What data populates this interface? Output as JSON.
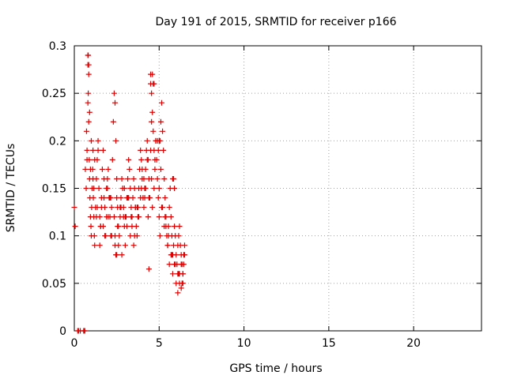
{
  "chart_data": {
    "type": "scatter",
    "title": "Day 191 of 2015, SRMTID for receiver p166",
    "xlabel": "GPS time / hours",
    "ylabel": "SRMTID / TECUs",
    "xlim": [
      0,
      24
    ],
    "ylim": [
      0,
      0.3
    ],
    "xticks": [
      0,
      5,
      10,
      15,
      20
    ],
    "yticks": [
      0,
      0.05,
      0.1,
      0.15,
      0.2,
      0.25,
      0.3
    ],
    "ytick_labels": [
      "0",
      "0.05",
      "0.1",
      "0.15",
      "0.2",
      "0.25",
      "0.3"
    ],
    "grid": true,
    "marker": "+",
    "color": "#dd0000",
    "series": [
      {
        "x": [
          0.0,
          0.05,
          0.2,
          0.25,
          0.35,
          0.55,
          0.6,
          0.62,
          0.65,
          0.7,
          0.72,
          0.75,
          0.8,
          0.82,
          0.85,
          0.88,
          0.9,
          0.92,
          0.95,
          0.98,
          1.0,
          1.02,
          1.05,
          1.08,
          1.1,
          1.12,
          1.15,
          1.18,
          1.2,
          1.25,
          1.3,
          1.35,
          1.4,
          1.45,
          1.5,
          1.55,
          1.6,
          1.65,
          1.7,
          1.75,
          1.8,
          1.85,
          1.9,
          1.95,
          2.0,
          2.05,
          2.1,
          2.15,
          2.2,
          2.25,
          2.3,
          2.35,
          2.4,
          2.45,
          2.5,
          2.55,
          2.6,
          2.65,
          2.7,
          2.75,
          2.8,
          2.85,
          2.9,
          2.95,
          3.0,
          3.05,
          3.1,
          3.15,
          3.2,
          3.25,
          3.3,
          3.35,
          3.4,
          3.45,
          3.5,
          3.55,
          3.6,
          3.65,
          3.7,
          3.75,
          3.8,
          3.85,
          3.9,
          3.95,
          4.0,
          4.05,
          4.1,
          4.15,
          4.2,
          4.25,
          4.3,
          4.35,
          4.4,
          4.45,
          4.5,
          4.55,
          4.6,
          4.65,
          4.7,
          4.75,
          4.8,
          4.85,
          4.9,
          4.95,
          5.0,
          5.05,
          5.1,
          5.15,
          5.2,
          5.25,
          5.3,
          5.35,
          5.4,
          5.45,
          5.5,
          5.55,
          5.6,
          5.65,
          5.7,
          5.75,
          5.8,
          5.85,
          5.9,
          5.95,
          6.0,
          6.05,
          6.1,
          6.15,
          6.2,
          6.25,
          6.3,
          6.35,
          6.4,
          6.45,
          6.5,
          0.8,
          0.85,
          1.0,
          1.1,
          1.3,
          1.5,
          1.7,
          1.9,
          2.1,
          2.4,
          2.6,
          2.8,
          3.0,
          3.2,
          3.4,
          3.6,
          3.8,
          4.0,
          4.2,
          4.4,
          4.6,
          4.8,
          5.0,
          5.2,
          5.4,
          5.6,
          5.8,
          6.0,
          6.2,
          6.4,
          0.9,
          1.2,
          1.4,
          1.6,
          1.8,
          2.0,
          2.2,
          2.5,
          2.7,
          2.9,
          3.1,
          3.3,
          3.5,
          3.7,
          3.9,
          4.1,
          4.3,
          4.5,
          4.7,
          4.9,
          5.1,
          5.3,
          5.5,
          5.7,
          5.9,
          6.1,
          6.3,
          6.5,
          0.75,
          0.95,
          1.15,
          1.35,
          1.55,
          1.75,
          1.95,
          2.15,
          2.35,
          2.55,
          2.75,
          2.95,
          3.15,
          3.35,
          3.55,
          3.75,
          3.95,
          4.15,
          4.35,
          4.55,
          4.75,
          4.95,
          5.15,
          5.35,
          5.55,
          5.75,
          5.95,
          6.15,
          6.35,
          4.5,
          4.6,
          4.65,
          4.7,
          4.55,
          5.05,
          5.0,
          2.4,
          2.45,
          2.5,
          0.8,
          0.82,
          0.85,
          4.4,
          6.1,
          6.2,
          6.3,
          6.4,
          6.45,
          5.8,
          5.85,
          5.9
        ],
        "y": [
          0.13,
          0.11,
          0.0,
          0.0,
          0.0,
          0.0,
          0.0,
          0.0,
          0.17,
          0.15,
          0.21,
          0.19,
          0.24,
          0.25,
          0.22,
          0.18,
          0.16,
          0.14,
          0.12,
          0.11,
          0.1,
          0.13,
          0.15,
          0.17,
          0.19,
          0.14,
          0.12,
          0.1,
          0.09,
          0.13,
          0.16,
          0.18,
          0.2,
          0.15,
          0.12,
          0.11,
          0.14,
          0.17,
          0.19,
          0.16,
          0.13,
          0.1,
          0.12,
          0.15,
          0.17,
          0.14,
          0.12,
          0.1,
          0.13,
          0.18,
          0.22,
          0.25,
          0.24,
          0.2,
          0.16,
          0.13,
          0.11,
          0.1,
          0.12,
          0.14,
          0.16,
          0.15,
          0.13,
          0.11,
          0.09,
          0.12,
          0.14,
          0.16,
          0.18,
          0.17,
          0.15,
          0.13,
          0.12,
          0.14,
          0.16,
          0.15,
          0.13,
          0.11,
          0.1,
          0.12,
          0.15,
          0.17,
          0.19,
          0.18,
          0.16,
          0.14,
          0.13,
          0.15,
          0.17,
          0.19,
          0.2,
          0.18,
          0.16,
          0.14,
          0.26,
          0.25,
          0.23,
          0.21,
          0.19,
          0.17,
          0.2,
          0.18,
          0.16,
          0.14,
          0.12,
          0.1,
          0.22,
          0.24,
          0.21,
          0.19,
          0.16,
          0.14,
          0.12,
          0.1,
          0.09,
          0.11,
          0.13,
          0.15,
          0.12,
          0.1,
          0.08,
          0.09,
          0.11,
          0.1,
          0.08,
          0.07,
          0.09,
          0.1,
          0.11,
          0.09,
          0.08,
          0.07,
          0.06,
          0.08,
          0.09,
          0.29,
          0.28,
          0.2,
          0.16,
          0.12,
          0.09,
          0.11,
          0.15,
          0.14,
          0.1,
          0.09,
          0.08,
          0.12,
          0.14,
          0.11,
          0.13,
          0.12,
          0.17,
          0.15,
          0.14,
          0.13,
          0.2,
          0.15,
          0.13,
          0.11,
          0.07,
          0.06,
          0.05,
          0.06,
          0.05,
          0.23,
          0.18,
          0.19,
          0.13,
          0.1,
          0.12,
          0.1,
          0.14,
          0.13,
          0.12,
          0.11,
          0.1,
          0.09,
          0.13,
          0.14,
          0.16,
          0.18,
          0.19,
          0.15,
          0.2,
          0.17,
          0.11,
          0.09,
          0.08,
          0.07,
          0.06,
          0.07,
          0.08,
          0.18,
          0.17,
          0.15,
          0.13,
          0.11,
          0.14,
          0.16,
          0.14,
          0.12,
          0.11,
          0.13,
          0.15,
          0.14,
          0.12,
          0.1,
          0.13,
          0.15,
          0.14,
          0.12,
          0.16,
          0.18,
          0.19,
          0.13,
          0.12,
          0.1,
          0.08,
          0.07,
          0.06,
          0.05,
          0.27,
          0.27,
          0.26,
          0.26,
          0.22,
          0.2,
          0.2,
          0.09,
          0.08,
          0.08,
          0.28,
          0.29,
          0.27,
          0.065,
          0.04,
          0.05,
          0.045,
          0.06,
          0.07,
          0.16,
          0.16,
          0.15
        ]
      }
    ]
  }
}
